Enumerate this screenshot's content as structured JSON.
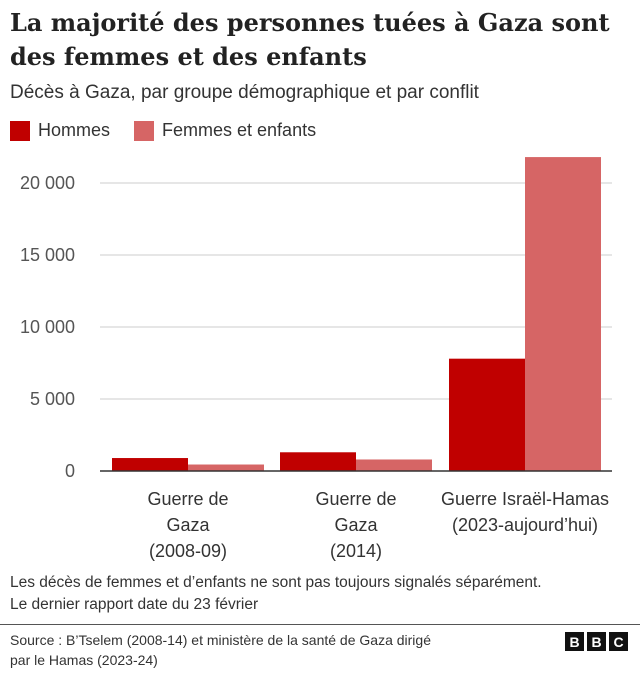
{
  "title": "La majorité des personnes tuées à Gaza sont des femmes et des enfants",
  "subtitle": "Décès à Gaza, par groupe démographique et par conflit",
  "note_lines": [
    "Les décès de femmes et d’enfants ne sont pas toujours signalés séparément.",
    "Le dernier rapport date du 23 février"
  ],
  "source_lines": [
    "Source : B’Tselem (2008-14) et ministère de la santé de Gaza dirigé",
    "par le Hamas (2023-24)"
  ],
  "logo_letters": [
    "B",
    "B",
    "C"
  ],
  "colors": {
    "men": "#c00000",
    "women_children": "#d66565",
    "grid": "#cccccc",
    "axis": "#333333"
  },
  "chart_data": {
    "type": "bar",
    "categories": [
      [
        "Guerre de",
        "Gaza",
        "(2008-09)"
      ],
      [
        "Guerre de",
        "Gaza",
        "(2014)"
      ],
      [
        "Guerre Israël-Hamas",
        "(2023-aujourd’hui)"
      ]
    ],
    "series": [
      {
        "name": "Hommes",
        "values": [
          900,
          1300,
          7800
        ]
      },
      {
        "name": "Femmes et enfants",
        "values": [
          450,
          800,
          21800
        ]
      }
    ],
    "yticks": [
      0,
      5000,
      10000,
      15000,
      20000
    ],
    "ytick_labels": [
      "0",
      "5 000",
      "10 000",
      "15 000",
      "20 000"
    ],
    "ylim": [
      0,
      22000
    ],
    "legend_position": "top-left",
    "grid": true
  }
}
